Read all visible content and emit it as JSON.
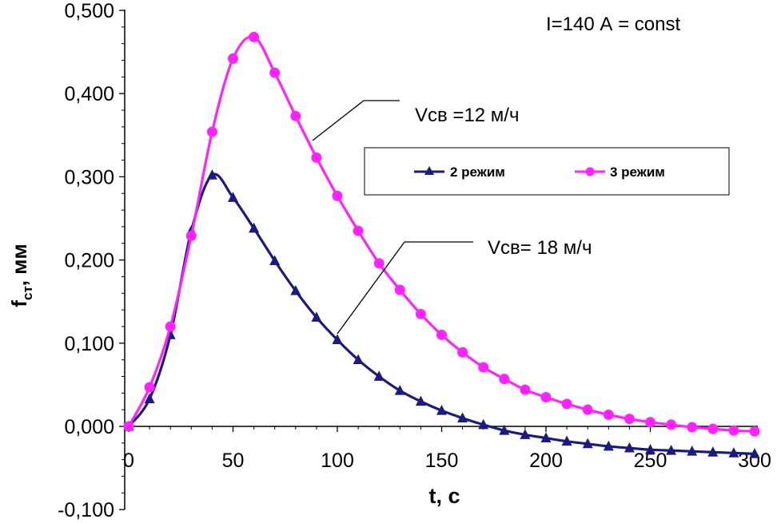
{
  "chart_data": {
    "type": "line",
    "xlabel": "t, с",
    "ylabel_main": "f",
    "ylabel_sub": "ст",
    "ylabel_unit": ", мм",
    "xlim": [
      0,
      300
    ],
    "ylim": [
      -0.1,
      0.5
    ],
    "x_ticks": [
      0,
      50,
      100,
      150,
      200,
      250,
      300
    ],
    "x_tick_labels": [
      "0",
      "50",
      "100",
      "150",
      "200",
      "250",
      "300"
    ],
    "y_ticks": [
      -0.1,
      0.0,
      0.1,
      0.2,
      0.3,
      0.4,
      0.5
    ],
    "y_tick_labels": [
      "-0,100",
      "0,000",
      "0,100",
      "0,200",
      "0,300",
      "0,400",
      "0,500"
    ],
    "grid": false,
    "legend_position": "upper-right",
    "annotations": [
      {
        "text": "I=140 А = const"
      },
      {
        "text": "Vсв =12 м/ч",
        "points_to": "3 режим"
      },
      {
        "text": "Vсв= 18 м/ч",
        "points_to": "2 режим"
      }
    ],
    "series": [
      {
        "name": "2 режим",
        "color": "#1a1a80",
        "marker": "triangle",
        "x": [
          0,
          10,
          20,
          30,
          40,
          50,
          60,
          70,
          80,
          90,
          100,
          110,
          120,
          130,
          140,
          150,
          160,
          170,
          180,
          190,
          200,
          210,
          220,
          230,
          240,
          250,
          260,
          270,
          280,
          290,
          300
        ],
        "y": [
          0.0,
          0.033,
          0.11,
          0.235,
          0.302,
          0.275,
          0.238,
          0.199,
          0.163,
          0.131,
          0.104,
          0.08,
          0.06,
          0.043,
          0.03,
          0.019,
          0.01,
          0.002,
          -0.005,
          -0.01,
          -0.014,
          -0.018,
          -0.021,
          -0.024,
          -0.026,
          -0.028,
          -0.029,
          -0.03,
          -0.031,
          -0.032,
          -0.033
        ]
      },
      {
        "name": "3 режим",
        "color": "#ff22ff",
        "marker": "circle",
        "x": [
          0,
          10,
          20,
          30,
          40,
          50,
          60,
          70,
          80,
          90,
          100,
          110,
          120,
          130,
          140,
          150,
          160,
          170,
          180,
          190,
          200,
          210,
          220,
          230,
          240,
          250,
          260,
          270,
          280,
          290,
          300
        ],
        "y": [
          0.0,
          0.047,
          0.12,
          0.229,
          0.354,
          0.442,
          0.468,
          0.425,
          0.373,
          0.323,
          0.277,
          0.235,
          0.196,
          0.164,
          0.135,
          0.11,
          0.089,
          0.071,
          0.057,
          0.044,
          0.035,
          0.027,
          0.02,
          0.014,
          0.009,
          0.005,
          0.002,
          -0.001,
          -0.003,
          -0.005,
          -0.006
        ]
      }
    ]
  }
}
